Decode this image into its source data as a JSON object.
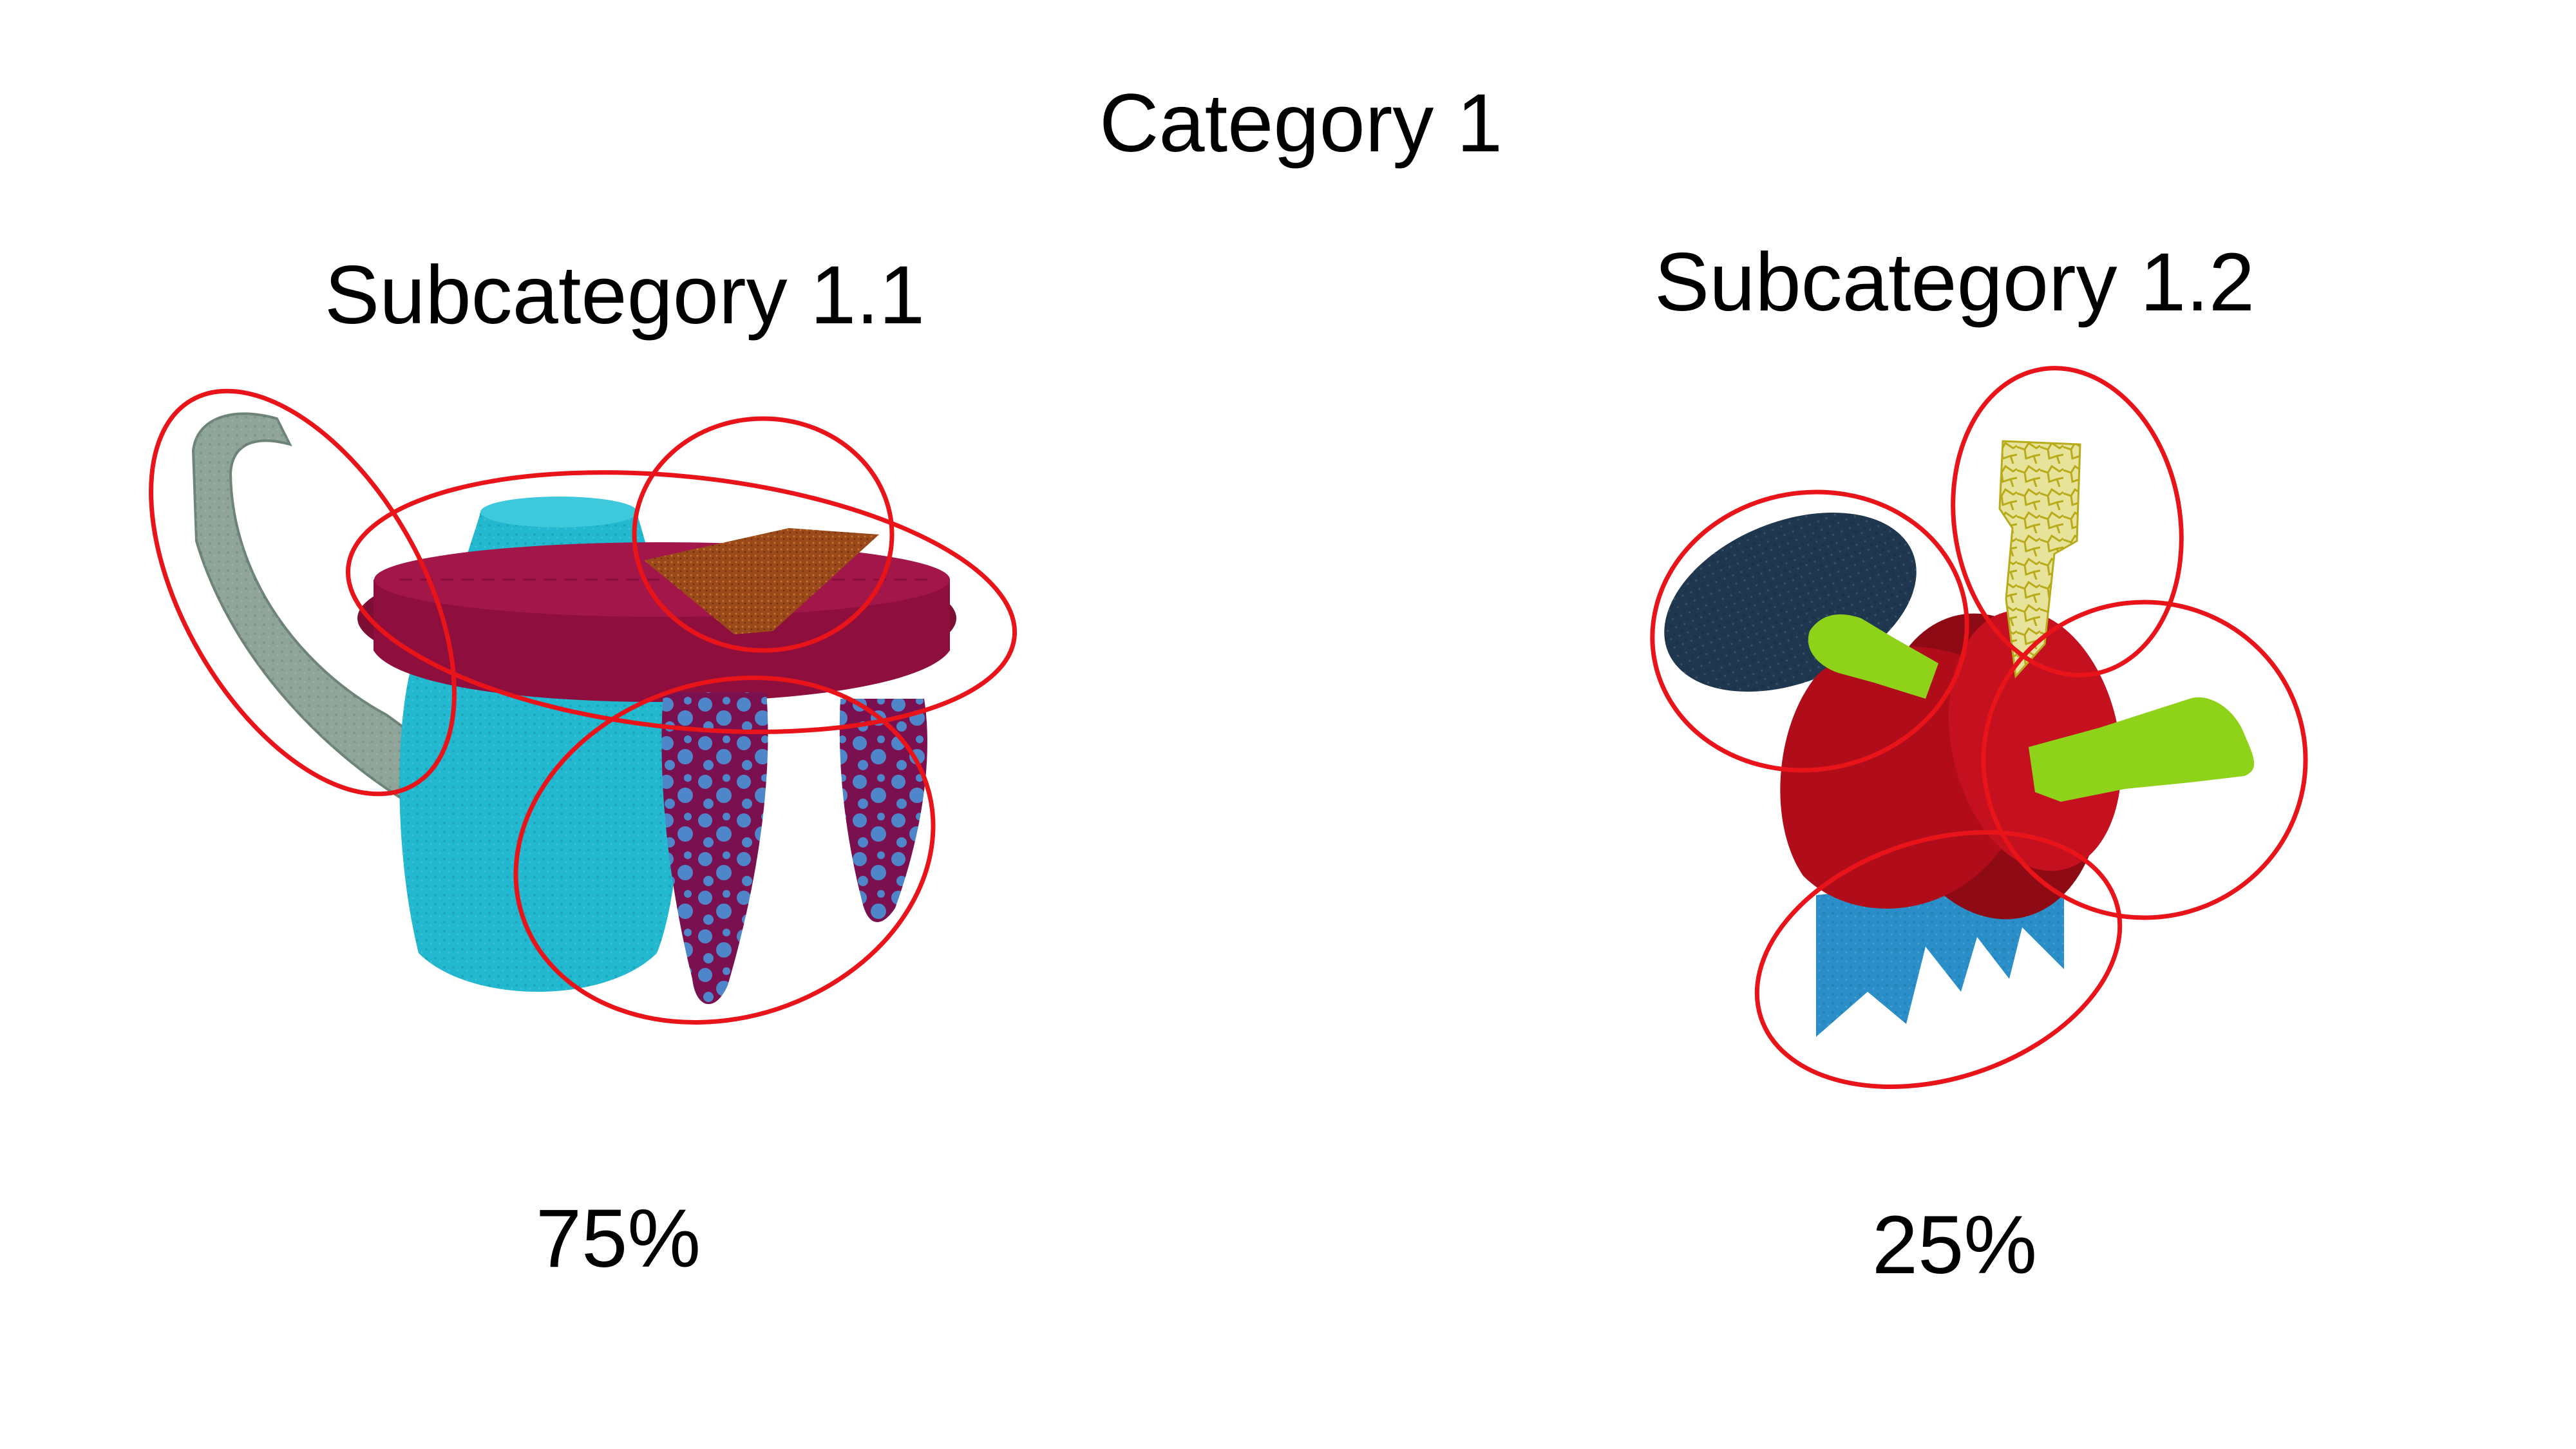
{
  "title": "Category 1",
  "subcategories": [
    {
      "label": "Subcategory 1.1",
      "percent": "75%"
    },
    {
      "label": "Subcategory 1.2",
      "percent": "25%"
    }
  ],
  "colors": {
    "highlight": "#e8141a",
    "cyan_body": "#22b8cf",
    "maroon_disc": "#8e0f3d",
    "handle_gray": "#8fa59a",
    "brown_plate": "#9a4a1a",
    "navy_disc": "#1f3850",
    "red_cylinder": "#b00c1a",
    "green_limb": "#8fd21a",
    "yellow_block": "#e6e08a",
    "blue_base": "#2a8fc8"
  },
  "icons": [
    "teapot-figure",
    "apple-figure"
  ]
}
